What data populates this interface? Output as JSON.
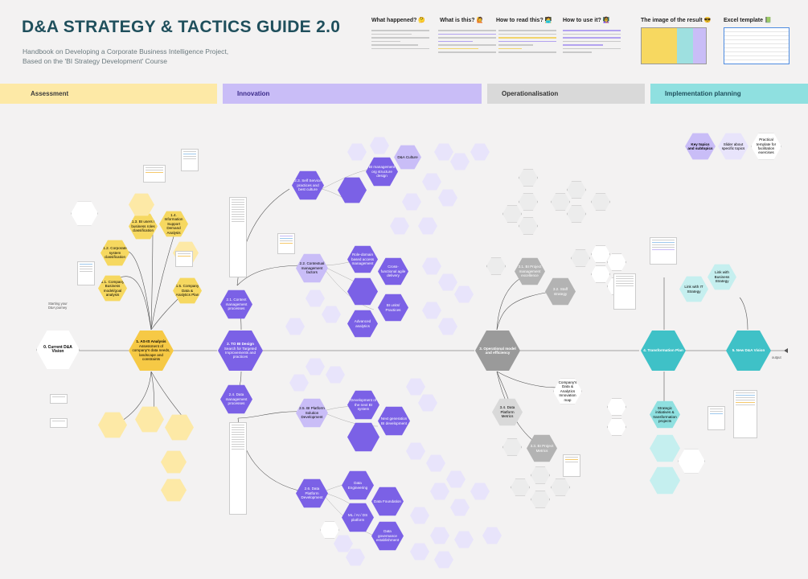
{
  "header": {
    "title": "D&A STRATEGY & TACTICS GUIDE 2.0",
    "subtitle_line1": "Handbook on Developing a Corporate Business Intelligence Project,",
    "subtitle_line2": "Based on the 'BI Strategy Development' Course"
  },
  "guide": [
    {
      "label": "What happened? 🤔"
    },
    {
      "label": "What is this? 🙋"
    },
    {
      "label": "How to read this? 🧑‍💻"
    },
    {
      "label": "How to use it? 👩‍🏫"
    },
    {
      "label": "The image of the result 😎"
    },
    {
      "label": "Excel template 📗"
    }
  ],
  "stages": [
    {
      "label": "Assessment",
      "color": "#fde9a6"
    },
    {
      "label": "Innovation",
      "color": "#c9bdf7"
    },
    {
      "label": "Operationalisation",
      "color": "#d9d9d9"
    },
    {
      "label": "Implementation planning",
      "color": "#8fe0e0"
    }
  ],
  "legend": {
    "key": "Key topics and subtopics",
    "slider": "Slider about specific topics",
    "practical": "Practical template for facilitation exercises"
  },
  "nodes": {
    "current": "0. Current D&A Vision",
    "asis": "1. AS-IS Analysis",
    "asis_sub": "Assessment of company's data needs, landscape and constraints",
    "tobi": "2. TO BI Design",
    "tobi_sub": "Search for Targeted Improvements and practices",
    "opmodel": "3. Operational model and efficiency",
    "transform": "4. Transformation Plan",
    "newvision": "5. New D&A Vision",
    "n11": "1.1. Company Business model/goal analysis",
    "n12": "1.2. Corporate system classification",
    "n13": "1.3. BI users / business roles classification",
    "n14": "1.4. Information Support Demand Analysis",
    "n15": "1.5. Company Data & Analytics Plan",
    "n21": "2.1. Content management processes",
    "n22": "2.2. Contextual management factors",
    "n23": "2.3. Self Service practices and best culture",
    "n24": "2.4. Data management processes",
    "n25": "2.5. BI Platform Solution Development",
    "n26": "2.6. Data Platform Development",
    "n31": "3.1. BI Project management excellence",
    "n32": "3.2. Staff strategy",
    "n33": "3.3. BI Project Metrics",
    "n34": "3.4. Data Platform Metrics",
    "data_eng": "Data Engineering",
    "data_found": "Data Foundation",
    "ml": "ML / AI / DS platform",
    "dge": "Data governance establishment",
    "bi_mgmt": "BI management org structure design",
    "dna_culture": "D&A Culture",
    "cross_func": "Cross-functional agile delivery",
    "bi_units": "BI units/ Practices",
    "adv_analytics": "Advanced analytics",
    "role_domain": "Role-domain based access management",
    "dev_bi": "Development of the next BI system",
    "next_gen": "Next generation BI development",
    "strategic": "Strategic initiatives & transformation projects",
    "company_roadmap": "Company's Data & Analytics Innovation map",
    "link_biz": "Link with Business Strategy",
    "link_it": "Link with IT Strategy"
  },
  "notes": {
    "start_note": "Starting your D&A journey",
    "output": "output"
  }
}
